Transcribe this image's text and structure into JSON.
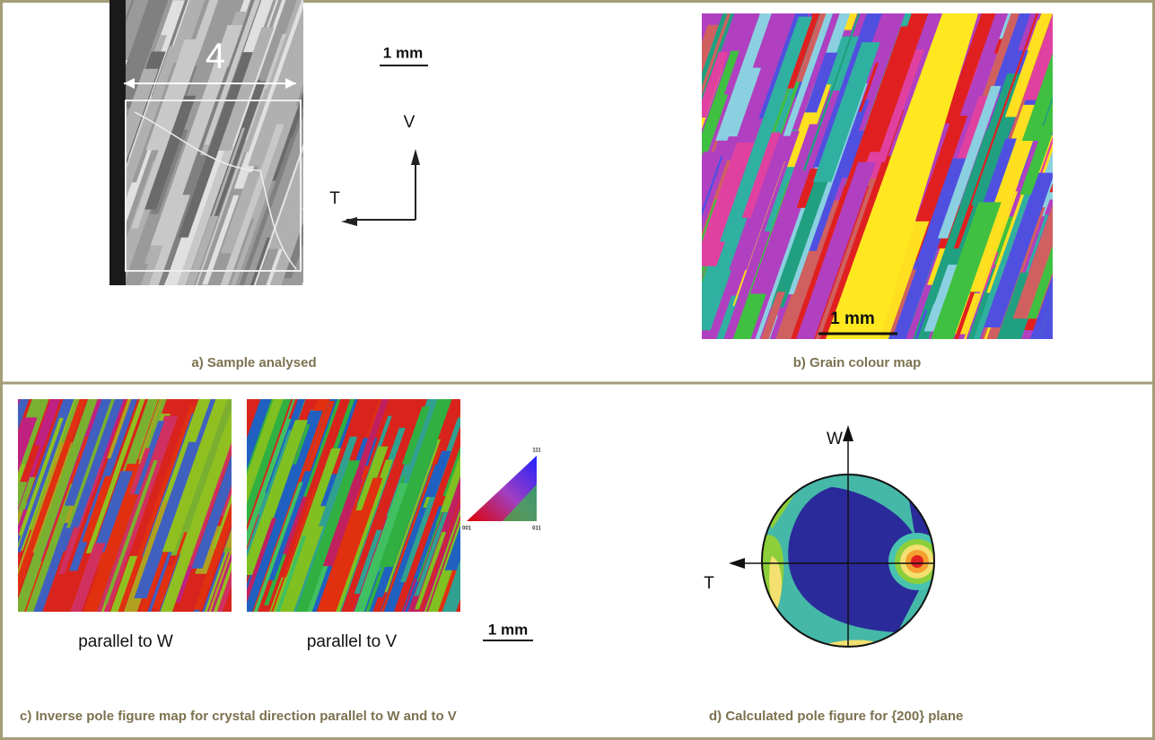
{
  "panels": [
    {
      "caption": "a) Sample analysed",
      "scale_bar": "1 mm",
      "width_label": "4",
      "axis_v": "V",
      "axis_t": "T"
    },
    {
      "caption": "b) Grain colour map",
      "scale_bar": "1 mm"
    },
    {
      "caption": "c) Inverse pole figure map for crystal direction parallel to W and to V",
      "map_labels": [
        "parallel to W",
        "parallel to V"
      ],
      "scale_bar": "1 mm",
      "triangle_labels": [
        "111",
        "001",
        "011"
      ]
    },
    {
      "caption": "d) Calculated pole figure for {200} plane",
      "axis_w": "W",
      "axis_t": "T"
    }
  ]
}
